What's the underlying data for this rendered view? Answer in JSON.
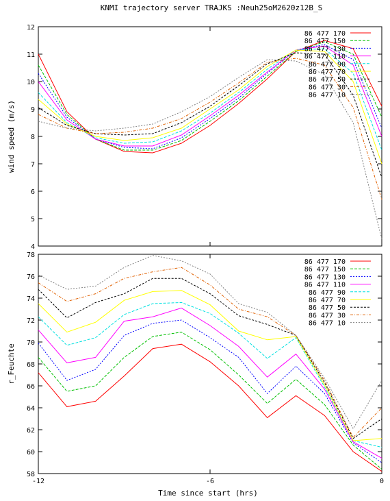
{
  "title": "KNMI trajectory server TRAJKS :Neuh25oM2620z12B_S",
  "xlabel": "Time since start (hrs)",
  "chart_data": [
    {
      "type": "line",
      "ylabel": "wind speed (m/s)",
      "xlim": [
        -12,
        0
      ],
      "ylim": [
        4,
        12
      ],
      "xticks": [
        -12,
        -6,
        0
      ],
      "yticks": [
        4,
        5,
        6,
        7,
        8,
        9,
        10,
        11,
        12
      ],
      "legend": "top-right",
      "x": [
        -12,
        -11,
        -10,
        -9,
        -8,
        -7,
        -6,
        -5,
        -4,
        -3,
        -2,
        -1,
        0
      ],
      "series": [
        {
          "name": "86 477 170",
          "color": "#ff0000",
          "dash": "",
          "values": [
            11.0,
            8.9,
            7.9,
            7.45,
            7.4,
            7.75,
            8.4,
            9.2,
            10.1,
            11.1,
            11.5,
            11.2,
            9.1
          ]
        },
        {
          "name": "86 477 150",
          "color": "#00c000",
          "dash": "4,2",
          "values": [
            10.6,
            8.8,
            7.9,
            7.5,
            7.5,
            7.85,
            8.55,
            9.3,
            10.2,
            11.1,
            11.45,
            11.0,
            8.7
          ]
        },
        {
          "name": "86 477 130",
          "color": "#0000ff",
          "dash": "2,2",
          "values": [
            10.3,
            8.7,
            7.9,
            7.6,
            7.55,
            7.95,
            8.65,
            9.4,
            10.3,
            11.15,
            11.35,
            10.8,
            8.3
          ]
        },
        {
          "name": "86 477 110",
          "color": "#ff00ff",
          "dash": "",
          "values": [
            10.0,
            8.6,
            7.9,
            7.65,
            7.65,
            8.05,
            8.75,
            9.5,
            10.35,
            11.15,
            11.3,
            10.6,
            8.0
          ]
        },
        {
          "name": "86 477 90",
          "color": "#00e0e0",
          "dash": "4,2",
          "values": [
            9.6,
            8.5,
            7.95,
            7.75,
            7.8,
            8.2,
            8.85,
            9.6,
            10.45,
            11.15,
            11.2,
            10.3,
            7.5
          ]
        },
        {
          "name": "86 477 70",
          "color": "#ffff00",
          "dash": "",
          "values": [
            9.35,
            8.45,
            8.0,
            7.85,
            7.95,
            8.3,
            9.0,
            9.7,
            10.55,
            11.15,
            11.1,
            10.0,
            7.0
          ]
        },
        {
          "name": "86 477 50",
          "color": "#000000",
          "dash": "3,2",
          "values": [
            9.05,
            8.4,
            8.1,
            8.05,
            8.1,
            8.5,
            9.1,
            9.85,
            10.65,
            11.05,
            11.0,
            9.5,
            6.5
          ]
        },
        {
          "name": "86 477 30",
          "color": "#e06000",
          "dash": "4,2,1,2",
          "values": [
            8.8,
            8.3,
            8.1,
            8.15,
            8.3,
            8.65,
            9.25,
            9.95,
            10.7,
            10.85,
            10.6,
            9.05,
            5.7
          ]
        },
        {
          "name": "86 477 10",
          "color": "#808080",
          "dash": "2,2",
          "values": [
            8.55,
            8.3,
            8.2,
            8.3,
            8.45,
            8.9,
            9.45,
            10.15,
            10.8,
            10.75,
            10.25,
            8.5,
            4.25
          ]
        }
      ]
    },
    {
      "type": "line",
      "ylabel": "r_Feuchte",
      "xlim": [
        -12,
        0
      ],
      "ylim": [
        58,
        78
      ],
      "xticks": [
        -12,
        -6,
        0
      ],
      "yticks": [
        58,
        60,
        62,
        64,
        66,
        68,
        70,
        72,
        74,
        76,
        78
      ],
      "legend": "top-right",
      "x": [
        -12,
        -11,
        -10,
        -9,
        -8,
        -7,
        -6,
        -5,
        -4,
        -3,
        -2,
        -1,
        0
      ],
      "series": [
        {
          "name": "86 477 170",
          "color": "#ff0000",
          "dash": "",
          "values": [
            67.2,
            64.1,
            64.6,
            66.9,
            69.4,
            69.8,
            68.2,
            66.0,
            63.1,
            65.1,
            63.3,
            60.0,
            58.2
          ]
        },
        {
          "name": "86 477 150",
          "color": "#00c000",
          "dash": "4,2",
          "values": [
            68.6,
            65.5,
            66.0,
            68.6,
            70.5,
            70.9,
            69.3,
            67.0,
            64.4,
            66.6,
            64.3,
            60.6,
            58.4
          ]
        },
        {
          "name": "86 477 130",
          "color": "#0000ff",
          "dash": "2,2",
          "values": [
            69.9,
            66.5,
            67.5,
            70.6,
            71.7,
            72.0,
            70.4,
            68.6,
            65.3,
            67.8,
            65.3,
            60.8,
            59.0
          ]
        },
        {
          "name": "86 477 110",
          "color": "#ff00ff",
          "dash": "",
          "values": [
            71.1,
            68.1,
            68.6,
            71.9,
            72.3,
            73.1,
            71.5,
            69.6,
            66.8,
            68.9,
            65.7,
            60.9,
            59.4
          ]
        },
        {
          "name": "86 477 90",
          "color": "#00e0e0",
          "dash": "4,2",
          "values": [
            72.3,
            69.7,
            70.4,
            72.5,
            73.5,
            73.6,
            72.6,
            70.8,
            68.5,
            70.4,
            65.9,
            61.0,
            60.4
          ]
        },
        {
          "name": "86 477 70",
          "color": "#ffff00",
          "dash": "",
          "values": [
            73.5,
            70.9,
            71.8,
            73.8,
            74.6,
            74.7,
            73.4,
            71.0,
            70.2,
            70.5,
            66.1,
            61.0,
            61.2
          ]
        },
        {
          "name": "86 477 50",
          "color": "#000000",
          "dash": "3,2",
          "values": [
            74.8,
            72.2,
            73.6,
            74.4,
            75.8,
            75.8,
            74.4,
            72.4,
            71.6,
            70.6,
            66.3,
            61.2,
            63.0
          ]
        },
        {
          "name": "86 477 30",
          "color": "#e06000",
          "dash": "4,2,1,2",
          "values": [
            75.4,
            73.7,
            74.4,
            75.8,
            76.4,
            76.8,
            75.2,
            73.0,
            72.3,
            70.6,
            66.5,
            61.3,
            64.0
          ]
        },
        {
          "name": "86 477 10",
          "color": "#808080",
          "dash": "2,2",
          "values": [
            76.1,
            74.8,
            75.1,
            76.8,
            77.9,
            77.4,
            76.2,
            73.5,
            72.7,
            70.6,
            66.7,
            62.1,
            66.5
          ]
        }
      ]
    }
  ]
}
